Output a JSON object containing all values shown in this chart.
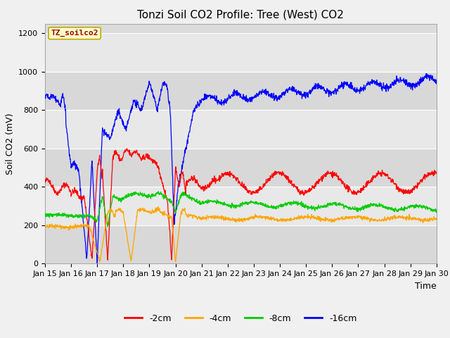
{
  "title": "Tonzi Soil CO2 Profile: Tree (West) CO2",
  "ylabel": "Soil CO2 (mV)",
  "xlabel": "Time",
  "watermark": "TZ_soilco2",
  "legend_labels": [
    "-2cm",
    "-4cm",
    "-8cm",
    "-16cm"
  ],
  "legend_colors": [
    "#ff0000",
    "#ffa500",
    "#00cc00",
    "#0000ff"
  ],
  "xlim_days": [
    15,
    30
  ],
  "ylim": [
    0,
    1250
  ],
  "yticks": [
    0,
    200,
    400,
    600,
    800,
    1000,
    1200
  ],
  "xtick_labels": [
    "Jan 15",
    "Jan 16",
    "Jan 17",
    "Jan 18",
    "Jan 19",
    "Jan 20",
    "Jan 21",
    "Jan 22",
    "Jan 23",
    "Jan 24",
    "Jan 25",
    "Jan 26",
    "Jan 27",
    "Jan 28",
    "Jan 29",
    "Jan 30"
  ],
  "fig_bg_color": "#f0f0f0",
  "plot_bg_color": "#dcdcdc",
  "grid_color": "#ffffff",
  "title_fontsize": 11,
  "axis_fontsize": 9,
  "tick_fontsize": 8,
  "watermark_fontsize": 8
}
